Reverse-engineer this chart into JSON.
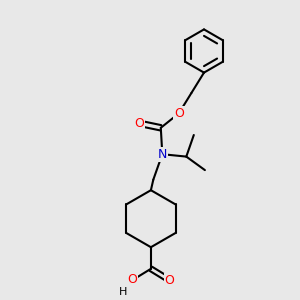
{
  "bg_color": "#e8e8e8",
  "bond_color": "#000000",
  "atom_colors": {
    "O": "#ff0000",
    "N": "#0000cc",
    "C": "#000000",
    "H": "#000000"
  },
  "line_width": 1.5
}
